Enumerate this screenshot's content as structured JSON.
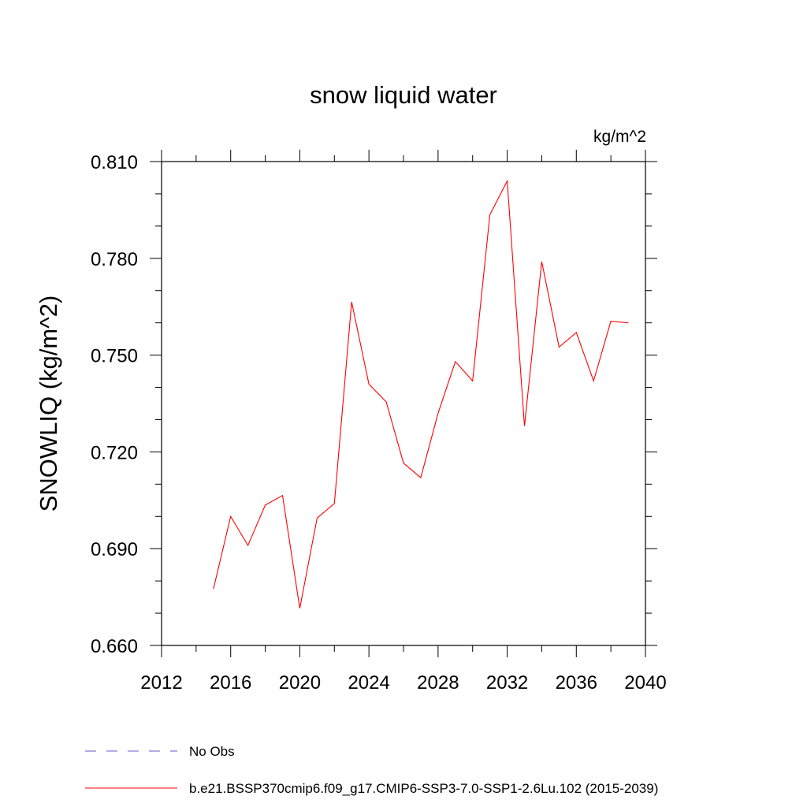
{
  "chart_data": {
    "type": "line",
    "title": "snow liquid water",
    "units_label": "kg/m^2",
    "ylabel": "SNOWLIQ  (kg/m^2)",
    "xlabel": "",
    "xlim": [
      2012,
      2040
    ],
    "ylim": [
      0.66,
      0.81
    ],
    "x_ticks": [
      2012,
      2016,
      2020,
      2024,
      2028,
      2032,
      2036,
      2040
    ],
    "x_tick_labels": [
      "2012",
      "2016",
      "2020",
      "2024",
      "2028",
      "2032",
      "2036",
      "2040"
    ],
    "y_ticks": [
      0.66,
      0.69,
      0.72,
      0.75,
      0.78,
      0.81
    ],
    "y_tick_labels": [
      "0.660",
      "0.690",
      "0.720",
      "0.750",
      "0.780",
      "0.810"
    ],
    "grid": false,
    "legend_position": "bottom",
    "series": [
      {
        "name": "b.e21.BSSP370cmip6.f09_g17.CMIP6-SSP3-7.0-SSP1-2.6Lu.102 (2015-2039)",
        "color": "#ff0000",
        "style": "solid",
        "x": [
          2015,
          2016,
          2017,
          2018,
          2019,
          2020,
          2021,
          2022,
          2023,
          2024,
          2025,
          2026,
          2027,
          2028,
          2029,
          2030,
          2031,
          2032,
          2033,
          2034,
          2035,
          2036,
          2037,
          2038,
          2039
        ],
        "y": [
          0.6775,
          0.7,
          0.691,
          0.7035,
          0.7065,
          0.6715,
          0.6995,
          0.704,
          0.7665,
          0.741,
          0.7355,
          0.7165,
          0.712,
          0.732,
          0.748,
          0.742,
          0.7935,
          0.804,
          0.728,
          0.779,
          0.7525,
          0.757,
          0.742,
          0.7605,
          0.76
        ]
      }
    ],
    "legend": [
      {
        "label": "No Obs",
        "color": "#6a5acd",
        "style": "dashed"
      },
      {
        "label": "b.e21.BSSP370cmip6.f09_g17.CMIP6-SSP3-7.0-SSP1-2.6Lu.102 (2015-2039)",
        "color": "#ff0000",
        "style": "solid"
      }
    ]
  }
}
